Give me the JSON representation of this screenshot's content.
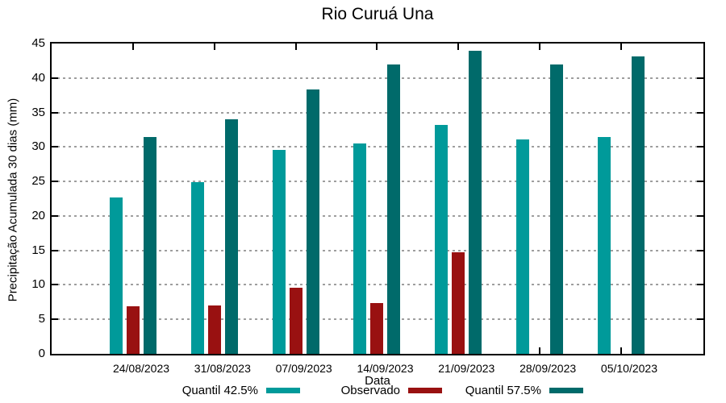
{
  "chart_data": {
    "type": "bar",
    "title": "Rio Curuá Una",
    "xlabel": "Data",
    "ylabel": "Precipitação Acumulada 30 dias (mm)",
    "categories": [
      "24/08/2023",
      "31/08/2023",
      "07/09/2023",
      "14/09/2023",
      "21/09/2023",
      "28/09/2023",
      "05/10/2023"
    ],
    "series": [
      {
        "name": "Quantil 42.5%",
        "color": "#009A9A",
        "values": [
          22.7,
          24.9,
          29.6,
          30.5,
          33.2,
          31.1,
          31.4
        ]
      },
      {
        "name": "Observado",
        "color": "#991111",
        "values": [
          6.9,
          7.0,
          9.6,
          7.4,
          14.7,
          null,
          null
        ]
      },
      {
        "name": "Quantil 57.5%",
        "color": "#006A6A",
        "values": [
          31.5,
          34.0,
          38.3,
          42.0,
          43.9,
          42.0,
          43.1
        ]
      }
    ],
    "ylim": [
      0,
      45
    ],
    "ytick_step": 5,
    "grid": "horizontal-dotted",
    "grid_color": "#9e9e9e",
    "legend_position": "bottom"
  }
}
